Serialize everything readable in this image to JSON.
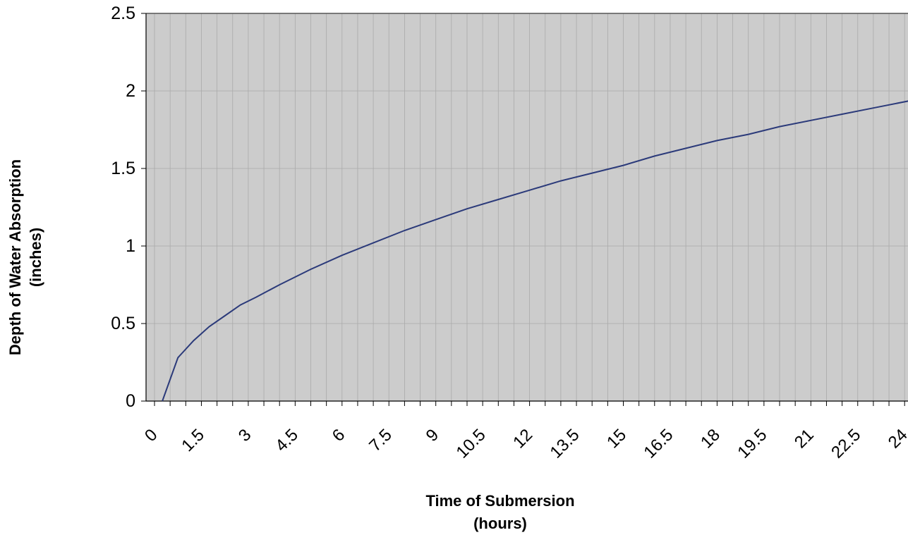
{
  "chart_data": {
    "type": "line",
    "title": "",
    "xlabel_line1": "Time of Submersion",
    "xlabel_line2": "(hours)",
    "ylabel_line1": "Depth of Water Absorption",
    "ylabel_line2": "(inches)",
    "xlim": [
      0,
      24.5
    ],
    "ylim": [
      0,
      2.5
    ],
    "x_tick_labels": [
      "0",
      "1.5",
      "3",
      "4.5",
      "6",
      "7.5",
      "9",
      "10.5",
      "12",
      "13.5",
      "15",
      "16.5",
      "18",
      "19.5",
      "21",
      "22.5",
      "24"
    ],
    "x_tick_values": [
      0,
      1.5,
      3,
      4.5,
      6,
      7.5,
      9,
      10.5,
      12,
      13.5,
      15,
      16.5,
      18,
      19.5,
      21,
      22.5,
      24
    ],
    "y_tick_labels": [
      "0",
      "0.5",
      "1",
      "1.5",
      "2",
      "2.5"
    ],
    "y_tick_values": [
      0,
      0.5,
      1,
      1.5,
      2,
      2.5
    ],
    "grid": true,
    "legend": "none",
    "colors": {
      "plot_background": "#cccccc",
      "grid": "#aaaaaa",
      "line": "#2b3a7a"
    },
    "series": [
      {
        "x": [
          0.25,
          0.75,
          1.25,
          1.75,
          2.25,
          2.75,
          3.25,
          4,
          5,
          6,
          7,
          8,
          9,
          10,
          11,
          12,
          13,
          14,
          15,
          16,
          17,
          18,
          19,
          20,
          21,
          22,
          23,
          24.25
        ],
        "y": [
          0,
          0.28,
          0.39,
          0.48,
          0.55,
          0.62,
          0.67,
          0.75,
          0.85,
          0.94,
          1.02,
          1.1,
          1.17,
          1.24,
          1.3,
          1.36,
          1.42,
          1.47,
          1.52,
          1.58,
          1.63,
          1.68,
          1.72,
          1.77,
          1.81,
          1.85,
          1.89,
          1.94
        ]
      }
    ]
  }
}
